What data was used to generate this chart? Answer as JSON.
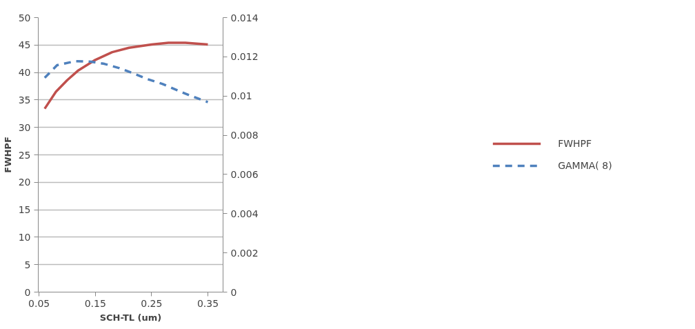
{
  "chart_data": {
    "type": "line",
    "xlabel": "SCH-TL (um)",
    "ylabel": "FWHPF",
    "xlim": [
      0.0486,
      0.377
    ],
    "xticks": [
      0.05,
      0.15,
      0.25,
      0.35
    ],
    "ylim": [
      0,
      50
    ],
    "yticks": [
      0,
      5,
      10,
      15,
      20,
      25,
      30,
      35,
      40,
      45,
      50
    ],
    "y2lim": [
      0,
      0.014
    ],
    "y2ticks": [
      0,
      0.002,
      0.004,
      0.006,
      0.008,
      0.01,
      0.012,
      0.014
    ],
    "grid": "y",
    "legend": "right",
    "series": [
      {
        "name": "FWHPF",
        "color": "#c0504d",
        "line_style": "solid",
        "x": [
          0.06,
          0.08,
          0.1,
          0.12,
          0.15,
          0.18,
          0.21,
          0.25,
          0.28,
          0.31,
          0.35
        ],
        "values": [
          33.4,
          36.5,
          38.6,
          40.4,
          42.3,
          43.7,
          44.5,
          45.1,
          45.4,
          45.4,
          45.1
        ]
      },
      {
        "name": "GAMMA( 8)",
        "color": "#4f81bd",
        "line_style": "dashed",
        "axis": "y2",
        "x": [
          0.06,
          0.082,
          0.115,
          0.143,
          0.166,
          0.192,
          0.218,
          0.243,
          0.269,
          0.295,
          0.32,
          0.35
        ],
        "values": [
          0.01093,
          0.01157,
          0.01178,
          0.01175,
          0.01164,
          0.01143,
          0.01115,
          0.01086,
          0.01062,
          0.0103,
          0.01001,
          0.00969
        ]
      }
    ]
  }
}
